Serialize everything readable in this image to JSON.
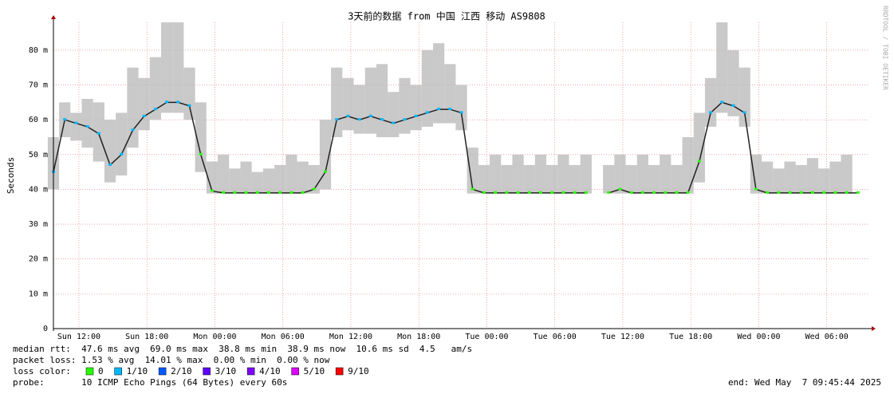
{
  "chart_data": {
    "type": "smokeping",
    "title": "3天前的数据 from 中国 江西 移动 AS9808",
    "y_label": "Seconds",
    "side_label": "RRDTOOL / TOBI OETIKER",
    "xlim": [
      0,
      72
    ],
    "ylim": [
      0,
      88
    ],
    "yticks": [
      0,
      {
        "value": 10,
        "label": "10 m"
      },
      {
        "value": 20,
        "label": "20 m"
      },
      {
        "value": 30,
        "label": "30 m"
      },
      {
        "value": 40,
        "label": "40 m"
      },
      {
        "value": 50,
        "label": "50 m"
      },
      {
        "value": 60,
        "label": "60 m"
      },
      {
        "value": 70,
        "label": "70 m"
      },
      {
        "value": 80,
        "label": "80 m"
      }
    ],
    "xticks": [
      {
        "value": 2.25,
        "label": "Sun 12:00"
      },
      {
        "value": 8.25,
        "label": "Sun 18:00"
      },
      {
        "value": 14.25,
        "label": "Mon 00:00"
      },
      {
        "value": 20.25,
        "label": "Mon 06:00"
      },
      {
        "value": 26.25,
        "label": "Mon 12:00"
      },
      {
        "value": 32.25,
        "label": "Mon 18:00"
      },
      {
        "value": 38.25,
        "label": "Tue 00:00"
      },
      {
        "value": 44.25,
        "label": "Tue 06:00"
      },
      {
        "value": 50.25,
        "label": "Tue 12:00"
      },
      {
        "value": 56.25,
        "label": "Tue 18:00"
      },
      {
        "value": 62.25,
        "label": "Wed 00:00"
      },
      {
        "value": 68.25,
        "label": "Wed 06:00"
      }
    ],
    "grid": true,
    "x": [
      0,
      1,
      2,
      3,
      4,
      5,
      6,
      7,
      8,
      9,
      10,
      11,
      12,
      13,
      14,
      15,
      16,
      17,
      18,
      19,
      20,
      21,
      22,
      23,
      24,
      25,
      26,
      27,
      28,
      29,
      30,
      31,
      32,
      33,
      34,
      35,
      36,
      37,
      38,
      39,
      40,
      41,
      42,
      43,
      44,
      45,
      46,
      47,
      48,
      49,
      50,
      51,
      52,
      53,
      54,
      55,
      56,
      57,
      58,
      59,
      60,
      61,
      62,
      63,
      64,
      65,
      66,
      67,
      68,
      69,
      70,
      71
    ],
    "median": [
      45,
      60,
      59,
      58,
      56,
      47,
      50,
      57,
      61,
      63,
      65,
      65,
      64,
      50,
      39.5,
      39,
      39,
      39,
      39,
      39,
      39,
      39,
      39,
      40,
      45,
      60,
      61,
      60,
      61,
      60,
      59,
      60,
      61,
      62,
      63,
      63,
      62,
      40,
      39,
      39,
      39,
      39,
      39,
      39,
      39,
      39,
      39,
      39,
      null,
      39,
      40,
      39,
      39,
      39,
      39,
      39,
      39,
      48,
      62,
      65,
      64,
      62,
      40,
      39,
      39,
      39,
      39,
      39,
      39,
      39,
      39,
      39
    ],
    "smoke_min": [
      40,
      55,
      54,
      52,
      48,
      42,
      44,
      52,
      57,
      60,
      62,
      62,
      60,
      45,
      38.8,
      38.8,
      38.8,
      38.8,
      38.8,
      38.8,
      38.8,
      38.8,
      38.8,
      38.8,
      40,
      55,
      57,
      56,
      56,
      55,
      55,
      56,
      57,
      58,
      59,
      59,
      57,
      38.8,
      38.8,
      38.8,
      38.8,
      38.8,
      38.8,
      38.8,
      38.8,
      38.8,
      38.8,
      38.8,
      null,
      38.8,
      38.8,
      38.8,
      38.8,
      38.8,
      38.8,
      38.8,
      38.8,
      42,
      58,
      62,
      61,
      58,
      38.8,
      38.8,
      38.8,
      38.8,
      38.8,
      38.8,
      38.8,
      38.8,
      38.8
    ],
    "smoke_max": [
      55,
      65,
      62,
      66,
      65,
      60,
      62,
      75,
      72,
      78,
      88,
      88,
      75,
      65,
      48,
      50,
      46,
      48,
      45,
      46,
      47,
      50,
      48,
      47,
      60,
      75,
      72,
      70,
      75,
      76,
      68,
      72,
      70,
      80,
      82,
      76,
      70,
      52,
      47,
      50,
      47,
      50,
      47,
      50,
      47,
      50,
      47,
      50,
      null,
      47,
      50,
      47,
      50,
      47,
      50,
      47,
      55,
      62,
      72,
      88,
      80,
      75,
      50,
      48,
      46,
      48,
      47,
      49,
      46,
      48,
      50,
      47
    ],
    "loss": [
      1,
      1,
      1,
      1,
      1,
      1,
      1,
      1,
      1,
      1,
      1,
      1,
      1,
      0,
      0,
      0,
      0,
      0,
      0,
      0,
      0,
      0,
      0,
      0,
      0,
      1,
      1,
      1,
      1,
      1,
      1,
      1,
      1,
      1,
      1,
      1,
      1,
      0,
      0,
      0,
      0,
      0,
      0,
      0,
      0,
      0,
      0,
      0,
      null,
      0,
      0,
      0,
      0,
      0,
      0,
      0,
      0,
      0,
      1,
      1,
      1,
      1,
      0,
      0,
      0,
      0,
      0,
      0,
      0,
      0,
      0,
      0
    ],
    "smoke_color": "#bbbbbb",
    "median_color": "#222222",
    "loss_colors": [
      {
        "label": "0",
        "color": "#26ff00"
      },
      {
        "label": "1/10",
        "color": "#00b8ff"
      },
      {
        "label": "2/10",
        "color": "#0059ff"
      },
      {
        "label": "3/10",
        "color": "#5e00ff"
      },
      {
        "label": "4/10",
        "color": "#7e00ff"
      },
      {
        "label": "5/10",
        "color": "#dd00ff"
      },
      {
        "label": "9/10",
        "color": "#ff0000"
      }
    ],
    "loss_color_title": "loss color:",
    "stats_rtt": "median rtt:  47.6 ms avg  69.0 ms max  38.8 ms min  38.9 ms now  10.6 ms sd  4.5   am/s",
    "stats_loss": "packet loss: 1.53 % avg  14.01 % max  0.00 % min  0.00 % now",
    "probe": "probe:       10 ICMP Echo Pings (64 Bytes) every 60s",
    "end": "end: Wed May  7 09:45:44 2025"
  }
}
